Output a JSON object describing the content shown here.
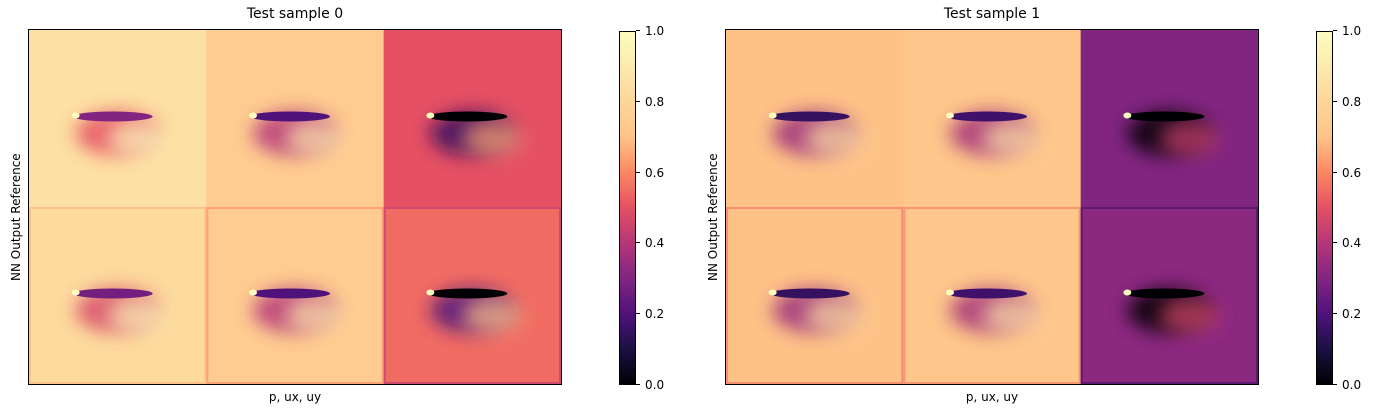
{
  "chart_data": [
    {
      "type": "heatmap",
      "title": "Test sample 0",
      "xlabel": "p, ux, uy",
      "ylabel": "NN Output Reference",
      "rows": [
        "NN Output",
        "Reference"
      ],
      "columns": [
        "p",
        "ux",
        "uy"
      ],
      "colormap": "magma",
      "colorbar": {
        "range": [
          0.0,
          1.0
        ],
        "ticks": [
          "0.0",
          "0.2",
          "0.4",
          "0.6",
          "0.8",
          "1.0"
        ]
      },
      "panel_levels": [
        [
          0.85,
          0.75,
          0.5
        ],
        [
          0.82,
          0.75,
          0.55
        ]
      ]
    },
    {
      "type": "heatmap",
      "title": "Test sample 1",
      "xlabel": "p, ux, uy",
      "ylabel": "NN Output Reference",
      "rows": [
        "NN Output",
        "Reference"
      ],
      "columns": [
        "p",
        "ux",
        "uy"
      ],
      "colormap": "magma",
      "colorbar": {
        "range": [
          0.0,
          1.0
        ],
        "ticks": [
          "0.0",
          "0.2",
          "0.4",
          "0.6",
          "0.8",
          "1.0"
        ]
      },
      "panel_levels": [
        [
          0.7,
          0.72,
          0.3
        ],
        [
          0.7,
          0.72,
          0.32
        ]
      ]
    }
  ]
}
